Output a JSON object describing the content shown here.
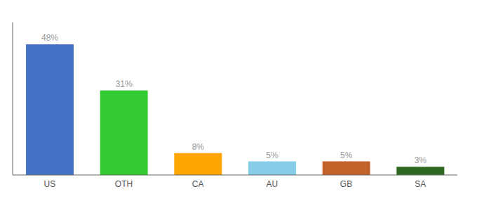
{
  "chart_data": {
    "type": "bar",
    "categories": [
      "US",
      "OTH",
      "CA",
      "AU",
      "GB",
      "SA"
    ],
    "values": [
      48,
      31,
      8,
      5,
      5,
      3
    ],
    "value_labels": [
      "48%",
      "31%",
      "8%",
      "5%",
      "5%",
      "3%"
    ],
    "colors": [
      "#4472C4",
      "#33CC33",
      "#FFA500",
      "#87CEEB",
      "#C0622A",
      "#2D6A1F"
    ],
    "ylim": [
      0,
      56
    ],
    "data_labels": true,
    "tick_labels": "x",
    "grid": false
  }
}
